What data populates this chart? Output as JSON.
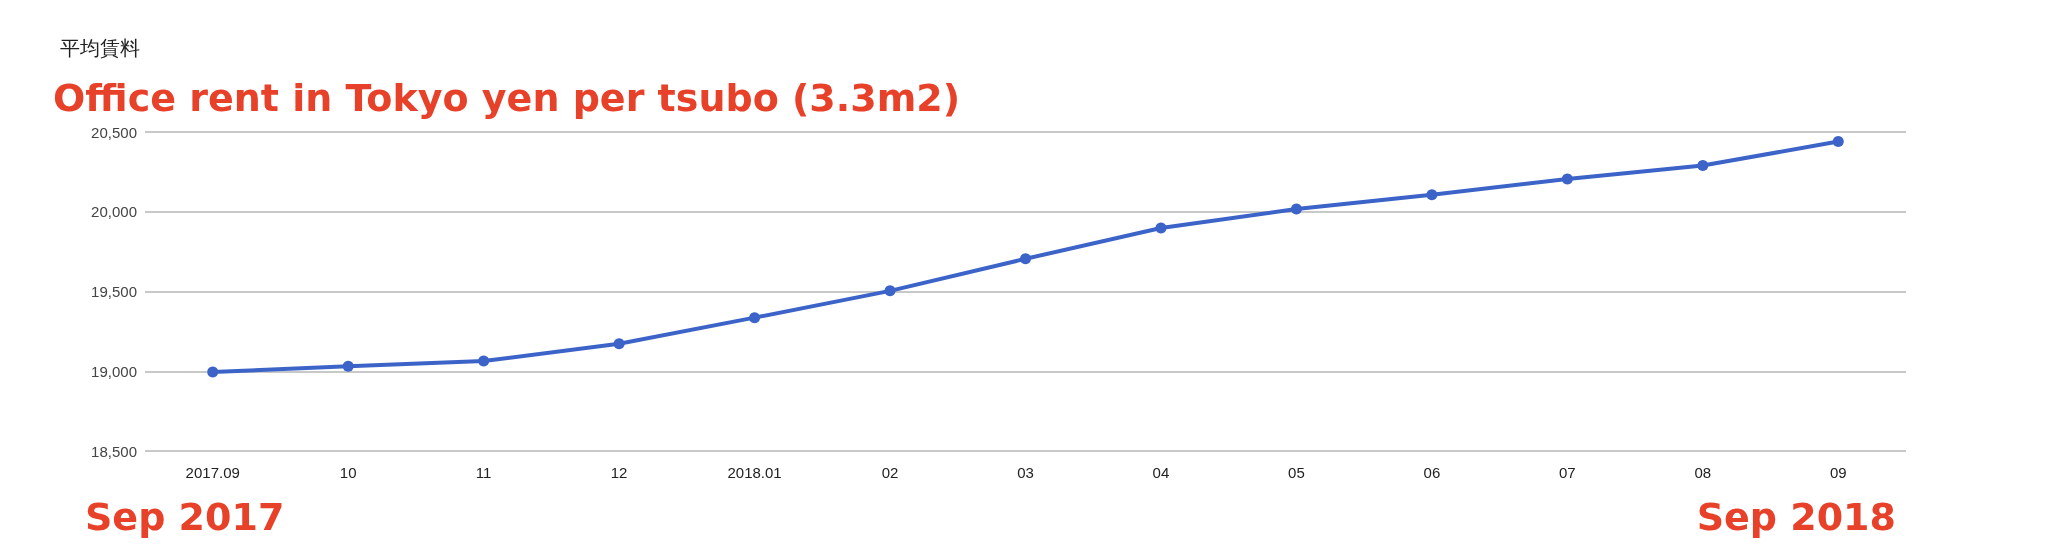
{
  "chart_data": {
    "type": "line",
    "title": "Office rent in Tokyo yen per tsubo (3.3m2)",
    "ylabel": "平均賃料",
    "categories": [
      "2017.09",
      "10",
      "11",
      "12",
      "2018.01",
      "02",
      "03",
      "04",
      "05",
      "06",
      "07",
      "08",
      "09"
    ],
    "series": [
      {
        "color": "#3c64c8",
        "values": [
          18995,
          19032,
          19064,
          19172,
          19336,
          19504,
          19705,
          19898,
          20017,
          20107,
          20205,
          20290,
          20440
        ]
      }
    ],
    "ylim": [
      18500,
      20500
    ],
    "yticks": [
      {
        "value": 18500,
        "label": "18,500"
      },
      {
        "value": 19000,
        "label": "19,000"
      },
      {
        "value": 19500,
        "label": "19,500"
      },
      {
        "value": 20000,
        "label": "20,000"
      },
      {
        "value": 20500,
        "label": "20,500"
      }
    ],
    "grid": "y",
    "marker": "circle",
    "line_style": "solid",
    "annotations": [
      "Sep 2017",
      "Sep 2018"
    ]
  }
}
